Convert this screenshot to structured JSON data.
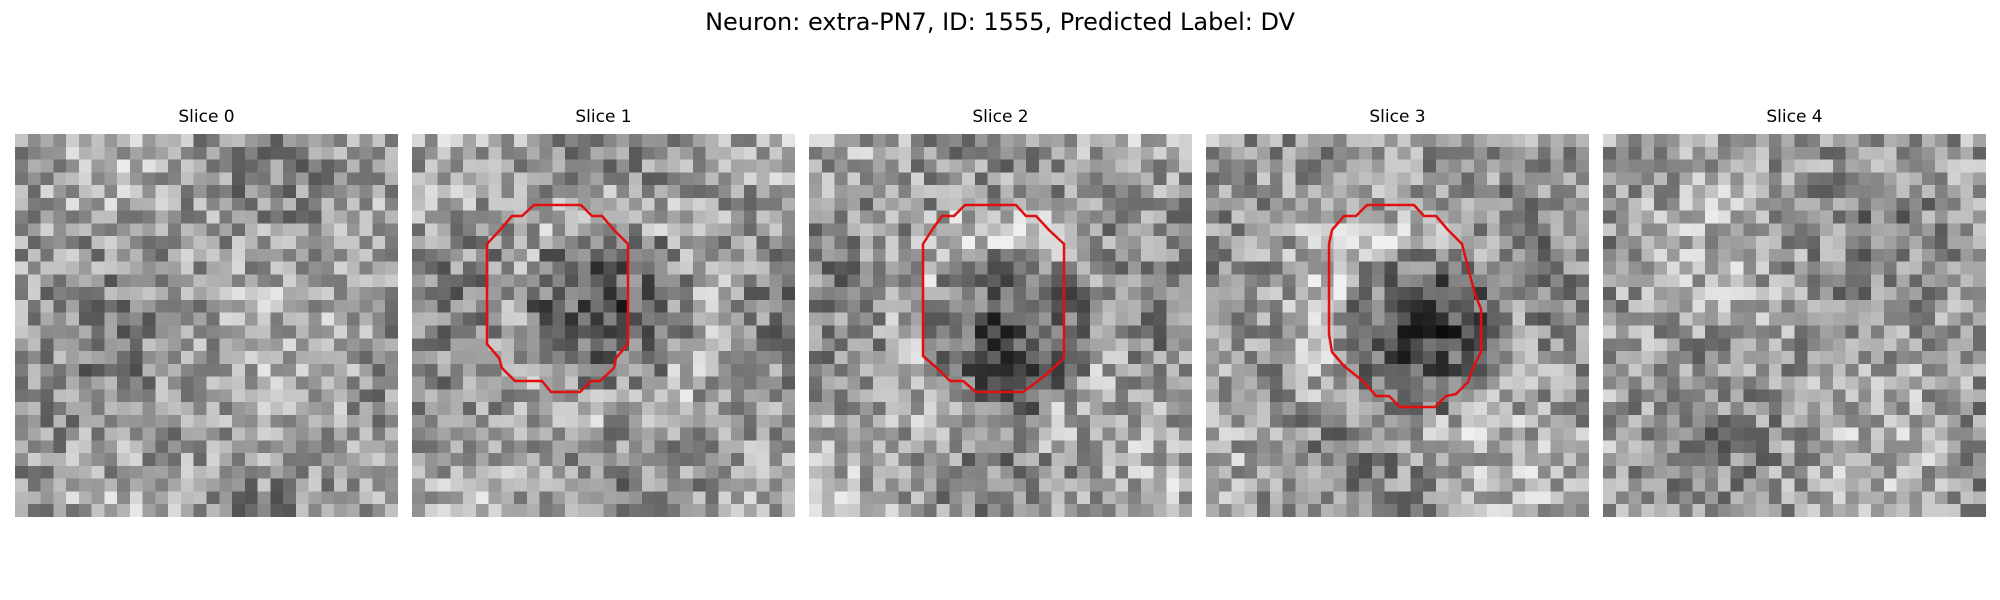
{
  "figure": {
    "title": "Neuron: extra-PN7, ID: 1555, Predicted Label: DV"
  },
  "contour_color": "#e01010",
  "panels": [
    {
      "title": "Slice 0",
      "has_contour": false,
      "dark_blob": false
    },
    {
      "title": "Slice 1",
      "has_contour": true,
      "dark_blob": true
    },
    {
      "title": "Slice 2",
      "has_contour": true,
      "dark_blob": true
    },
    {
      "title": "Slice 3",
      "has_contour": true,
      "dark_blob": true
    },
    {
      "title": "Slice 4",
      "has_contour": false,
      "dark_blob": false
    }
  ]
}
